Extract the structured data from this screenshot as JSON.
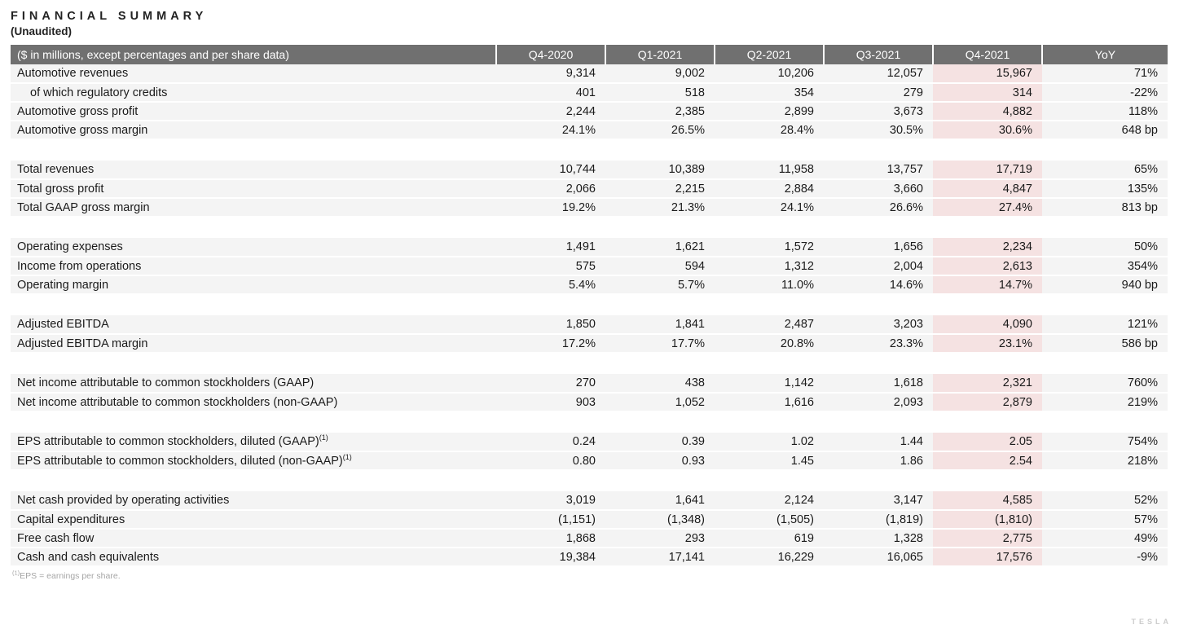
{
  "page": {
    "title": "FINANCIAL SUMMARY",
    "subtitle": "(Unaudited)",
    "footnote_marker": "(1)",
    "footnote_text": "EPS = earnings per share.",
    "watermark": "TESLA"
  },
  "colors": {
    "header_bg": "#707070",
    "header_text": "#ffffff",
    "row_bg": "#f4f4f4",
    "highlight_bg": "#f5e2e2",
    "text": "#1a1a1a",
    "footnote_color": "#a6a6a6"
  },
  "table": {
    "header": {
      "label": "($ in millions, except percentages and per share data)",
      "columns": [
        "Q4-2020",
        "Q1-2021",
        "Q2-2021",
        "Q3-2021",
        "Q4-2021",
        "YoY"
      ]
    },
    "highlight_column": "Q4-2021",
    "groups": [
      {
        "rows": [
          {
            "label": "Automotive revenues",
            "values": [
              "9,314",
              "9,002",
              "10,206",
              "12,057",
              "15,967",
              "71%"
            ]
          },
          {
            "label": "of which regulatory credits",
            "indent": true,
            "values": [
              "401",
              "518",
              "354",
              "279",
              "314",
              "-22%"
            ]
          },
          {
            "label": "Automotive gross profit",
            "values": [
              "2,244",
              "2,385",
              "2,899",
              "3,673",
              "4,882",
              "118%"
            ]
          },
          {
            "label": "Automotive gross margin",
            "values": [
              "24.1%",
              "26.5%",
              "28.4%",
              "30.5%",
              "30.6%",
              "648 bp"
            ]
          }
        ]
      },
      {
        "rows": [
          {
            "label": "Total revenues",
            "values": [
              "10,744",
              "10,389",
              "11,958",
              "13,757",
              "17,719",
              "65%"
            ]
          },
          {
            "label": "Total gross profit",
            "values": [
              "2,066",
              "2,215",
              "2,884",
              "3,660",
              "4,847",
              "135%"
            ]
          },
          {
            "label": "Total GAAP gross margin",
            "values": [
              "19.2%",
              "21.3%",
              "24.1%",
              "26.6%",
              "27.4%",
              "813 bp"
            ]
          }
        ]
      },
      {
        "rows": [
          {
            "label": "Operating expenses",
            "values": [
              "1,491",
              "1,621",
              "1,572",
              "1,656",
              "2,234",
              "50%"
            ]
          },
          {
            "label": "Income from operations",
            "values": [
              "575",
              "594",
              "1,312",
              "2,004",
              "2,613",
              "354%"
            ]
          },
          {
            "label": "Operating margin",
            "values": [
              "5.4%",
              "5.7%",
              "11.0%",
              "14.6%",
              "14.7%",
              "940 bp"
            ]
          }
        ]
      },
      {
        "rows": [
          {
            "label": "Adjusted EBITDA",
            "values": [
              "1,850",
              "1,841",
              "2,487",
              "3,203",
              "4,090",
              "121%"
            ]
          },
          {
            "label": "Adjusted EBITDA margin",
            "values": [
              "17.2%",
              "17.7%",
              "20.8%",
              "23.3%",
              "23.1%",
              "586 bp"
            ]
          }
        ]
      },
      {
        "rows": [
          {
            "label": "Net income attributable to common stockholders (GAAP)",
            "values": [
              "270",
              "438",
              "1,142",
              "1,618",
              "2,321",
              "760%"
            ]
          },
          {
            "label": "Net income attributable to common stockholders (non-GAAP)",
            "values": [
              "903",
              "1,052",
              "1,616",
              "2,093",
              "2,879",
              "219%"
            ]
          }
        ]
      },
      {
        "rows": [
          {
            "label": "EPS attributable to common stockholders, diluted (GAAP)",
            "sup": "(1)",
            "values": [
              "0.24",
              "0.39",
              "1.02",
              "1.44",
              "2.05",
              "754%"
            ]
          },
          {
            "label": "EPS attributable to common stockholders, diluted (non-GAAP)",
            "sup": "(1)",
            "values": [
              "0.80",
              "0.93",
              "1.45",
              "1.86",
              "2.54",
              "218%"
            ]
          }
        ]
      },
      {
        "rows": [
          {
            "label": "Net cash provided by operating activities",
            "values": [
              "3,019",
              "1,641",
              "2,124",
              "3,147",
              "4,585",
              "52%"
            ]
          },
          {
            "label": "Capital expenditures",
            "values": [
              "(1,151)",
              "(1,348)",
              "(1,505)",
              "(1,819)",
              "(1,810)",
              "57%"
            ]
          },
          {
            "label": "Free cash flow",
            "values": [
              "1,868",
              "293",
              "619",
              "1,328",
              "2,775",
              "49%"
            ]
          },
          {
            "label": "Cash and cash equivalents",
            "values": [
              "19,384",
              "17,141",
              "16,229",
              "16,065",
              "17,576",
              "-9%"
            ]
          }
        ]
      }
    ]
  }
}
